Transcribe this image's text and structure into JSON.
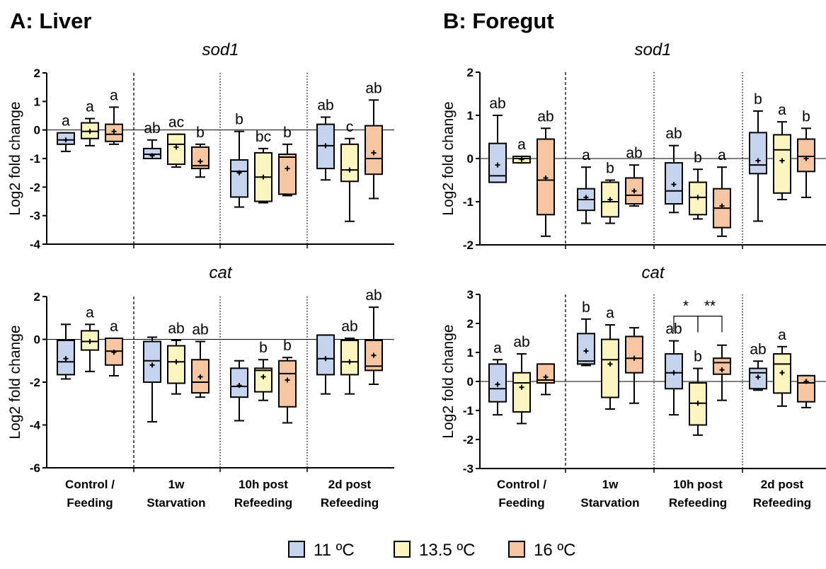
{
  "colors": {
    "11": "#c5d3ef",
    "13.5": "#fbf6c0",
    "16": "#f6c6a3"
  },
  "panels": [
    {
      "title": "A: Liver"
    },
    {
      "title": "B: Foregut"
    }
  ],
  "categories": [
    "Control / Feeding",
    "1w Starvation",
    "10h post Refeeding",
    "2d post Refeeding"
  ],
  "category_lines": [
    [
      "Control /",
      "Feeding"
    ],
    [
      "1w",
      "Starvation"
    ],
    [
      "10h post",
      "Refeeding"
    ],
    [
      "2d post",
      "Refeeding"
    ]
  ],
  "legend": [
    {
      "key": "11",
      "label": "11 ºC"
    },
    {
      "key": "13.5",
      "label": "13.5 ºC"
    },
    {
      "key": "16",
      "label": "16 ºC"
    }
  ],
  "chart_data": [
    {
      "type": "box",
      "panel": "A: Liver",
      "title": "sod1",
      "ylabel": "Log2 fold change",
      "ylim": [
        -4,
        2
      ],
      "yticks": [
        2,
        1,
        0,
        -1,
        -2,
        -3,
        -4
      ],
      "series": [
        "11 ºC",
        "13.5 ºC",
        "16 ºC"
      ],
      "boxes": [
        {
          "category": "Control / Feeding",
          "temp": "11",
          "min": -0.75,
          "q1": -0.5,
          "median": -0.35,
          "q3": -0.1,
          "max": -0.1,
          "mean": -0.35,
          "letter": "a"
        },
        {
          "category": "Control / Feeding",
          "temp": "13.5",
          "min": -0.55,
          "q1": -0.3,
          "median": -0.05,
          "q3": 0.25,
          "max": 0.4,
          "mean": -0.05,
          "letter": "a"
        },
        {
          "category": "Control / Feeding",
          "temp": "16",
          "min": -0.5,
          "q1": -0.4,
          "median": -0.15,
          "q3": 0.2,
          "max": 0.8,
          "mean": -0.05,
          "letter": "a"
        },
        {
          "category": "1w Starvation",
          "temp": "11",
          "min": -1.0,
          "q1": -1.0,
          "median": -0.85,
          "q3": -0.65,
          "max": -0.35,
          "mean": -0.9,
          "letter": "ab"
        },
        {
          "category": "1w Starvation",
          "temp": "13.5",
          "min": -1.3,
          "q1": -1.2,
          "median": -0.5,
          "q3": -0.15,
          "max": -0.15,
          "mean": -0.6,
          "letter": "ac"
        },
        {
          "category": "1w Starvation",
          "temp": "16",
          "min": -1.65,
          "q1": -1.35,
          "median": -1.25,
          "q3": -0.6,
          "max": -0.5,
          "mean": -1.1,
          "letter": "b"
        },
        {
          "category": "10h post Refeeding",
          "temp": "11",
          "min": -2.7,
          "q1": -2.35,
          "median": -1.45,
          "q3": -1.05,
          "max": -0.05,
          "mean": -1.5,
          "letter": "b"
        },
        {
          "category": "10h post Refeeding",
          "temp": "13.5",
          "min": -2.55,
          "q1": -2.5,
          "median": -1.65,
          "q3": -0.8,
          "max": -0.65,
          "mean": -1.65,
          "letter": "bc"
        },
        {
          "category": "10h post Refeeding",
          "temp": "16",
          "min": -2.3,
          "q1": -2.25,
          "median": -0.95,
          "q3": -0.85,
          "max": -0.5,
          "mean": -1.35,
          "letter": "b"
        },
        {
          "category": "2d post Refeeding",
          "temp": "11",
          "min": -1.75,
          "q1": -1.35,
          "median": -0.55,
          "q3": 0.2,
          "max": 0.45,
          "mean": -0.55,
          "letter": "ab"
        },
        {
          "category": "2d post Refeeding",
          "temp": "13.5",
          "min": -3.2,
          "q1": -1.8,
          "median": -1.4,
          "q3": -0.5,
          "max": -0.3,
          "mean": -1.4,
          "letter": "c"
        },
        {
          "category": "2d post Refeeding",
          "temp": "16",
          "min": -2.4,
          "q1": -1.55,
          "median": -1.0,
          "q3": 0.15,
          "max": 1.05,
          "mean": -0.8,
          "letter": "ab"
        }
      ]
    },
    {
      "type": "box",
      "panel": "A: Liver",
      "title": "cat",
      "ylabel": "Log2 fold change",
      "ylim": [
        -6,
        2
      ],
      "yticks": [
        2,
        0,
        -2,
        -4,
        -6
      ],
      "series": [
        "11 ºC",
        "13.5 ºC",
        "16 ºC"
      ],
      "boxes": [
        {
          "category": "Control / Feeding",
          "temp": "11",
          "min": -1.85,
          "q1": -1.65,
          "median": -1.05,
          "q3": -0.05,
          "max": 0.7,
          "mean": -0.9,
          "letter": ""
        },
        {
          "category": "Control / Feeding",
          "temp": "13.5",
          "min": -1.5,
          "q1": -0.5,
          "median": -0.1,
          "q3": 0.4,
          "max": 0.7,
          "mean": -0.1,
          "letter": "a"
        },
        {
          "category": "Control / Feeding",
          "temp": "16",
          "min": -1.7,
          "q1": -1.2,
          "median": -0.55,
          "q3": 0.05,
          "max": 0.05,
          "mean": -0.6,
          "letter": "a"
        },
        {
          "category": "1w Starvation",
          "temp": "11",
          "min": -3.85,
          "q1": -2.0,
          "median": -1.0,
          "q3": -0.1,
          "max": 0.1,
          "mean": -1.2,
          "letter": ""
        },
        {
          "category": "1w Starvation",
          "temp": "13.5",
          "min": -2.55,
          "q1": -2.05,
          "median": -1.05,
          "q3": -0.3,
          "max": -0.05,
          "mean": -1.05,
          "letter": "ab"
        },
        {
          "category": "1w Starvation",
          "temp": "16",
          "min": -2.7,
          "q1": -2.5,
          "median": -2.0,
          "q3": -0.95,
          "max": -0.1,
          "mean": -1.75,
          "letter": "ab"
        },
        {
          "category": "10h post Refeeding",
          "temp": "11",
          "min": -3.8,
          "q1": -2.7,
          "median": -2.2,
          "q3": -1.35,
          "max": -1.0,
          "mean": -2.15,
          "letter": ""
        },
        {
          "category": "10h post Refeeding",
          "temp": "13.5",
          "min": -2.85,
          "q1": -2.45,
          "median": -1.45,
          "q3": -1.35,
          "max": -0.95,
          "mean": -1.75,
          "letter": "b"
        },
        {
          "category": "10h post Refeeding",
          "temp": "16",
          "min": -3.9,
          "q1": -3.15,
          "median": -1.6,
          "q3": -1.0,
          "max": -0.85,
          "mean": -1.9,
          "letter": "b"
        },
        {
          "category": "2d post Refeeding",
          "temp": "11",
          "min": -2.55,
          "q1": -1.65,
          "median": -0.9,
          "q3": 0.2,
          "max": 0.2,
          "mean": -0.9,
          "letter": ""
        },
        {
          "category": "2d post Refeeding",
          "temp": "13.5",
          "min": -2.55,
          "q1": -1.65,
          "median": -1.05,
          "q3": -0.05,
          "max": 0.05,
          "mean": -1.05,
          "letter": "ab"
        },
        {
          "category": "2d post Refeeding",
          "temp": "16",
          "min": -2.1,
          "q1": -1.45,
          "median": -1.25,
          "q3": -0.05,
          "max": 1.5,
          "mean": -0.75,
          "letter": "ab"
        }
      ]
    },
    {
      "type": "box",
      "panel": "B: Foregut",
      "title": "sod1",
      "ylabel": "Log2 fold change",
      "ylim": [
        -2,
        2
      ],
      "yticks": [
        2,
        1,
        0,
        -1,
        -2
      ],
      "series": [
        "11 ºC",
        "13.5 ºC",
        "16 ºC"
      ],
      "boxes": [
        {
          "category": "Control / Feeding",
          "temp": "11",
          "min": -0.55,
          "q1": -0.55,
          "median": -0.4,
          "q3": 0.35,
          "max": 1.0,
          "mean": -0.15,
          "letter": "ab"
        },
        {
          "category": "Control / Feeding",
          "temp": "13.5",
          "min": -0.1,
          "q1": -0.1,
          "median": 0.0,
          "q3": 0.05,
          "max": 0.05,
          "mean": -0.02,
          "letter": "a"
        },
        {
          "category": "Control / Feeding",
          "temp": "16",
          "min": -1.8,
          "q1": -1.3,
          "median": -0.5,
          "q3": 0.45,
          "max": 0.7,
          "mean": -0.45,
          "letter": "ab"
        },
        {
          "category": "1w Starvation",
          "temp": "11",
          "min": -1.5,
          "q1": -1.2,
          "median": -0.95,
          "q3": -0.7,
          "max": -0.2,
          "mean": -0.9,
          "letter": "a"
        },
        {
          "category": "1w Starvation",
          "temp": "13.5",
          "min": -1.5,
          "q1": -1.35,
          "median": -1.0,
          "q3": -0.55,
          "max": -0.5,
          "mean": -0.95,
          "letter": "b"
        },
        {
          "category": "1w Starvation",
          "temp": "16",
          "min": -1.1,
          "q1": -1.05,
          "median": -0.85,
          "q3": -0.45,
          "max": -0.15,
          "mean": -0.75,
          "letter": "ab"
        },
        {
          "category": "10h post Refeeding",
          "temp": "11",
          "min": -1.25,
          "q1": -1.05,
          "median": -0.75,
          "q3": -0.1,
          "max": 0.3,
          "mean": -0.6,
          "letter": "ab"
        },
        {
          "category": "10h post Refeeding",
          "temp": "13.5",
          "min": -1.4,
          "q1": -1.3,
          "median": -0.9,
          "q3": -0.55,
          "max": -0.25,
          "mean": -0.9,
          "letter": "b"
        },
        {
          "category": "10h post Refeeding",
          "temp": "16",
          "min": -1.8,
          "q1": -1.6,
          "median": -1.15,
          "q3": -0.7,
          "max": -0.2,
          "mean": -1.1,
          "letter": "a"
        },
        {
          "category": "2d post Refeeding",
          "temp": "11",
          "min": -1.45,
          "q1": -0.35,
          "median": -0.15,
          "q3": 0.6,
          "max": 1.1,
          "mean": -0.05,
          "letter": "b"
        },
        {
          "category": "2d post Refeeding",
          "temp": "13.5",
          "min": -0.95,
          "q1": -0.8,
          "median": 0.2,
          "q3": 0.55,
          "max": 0.85,
          "mean": -0.05,
          "letter": "a"
        },
        {
          "category": "2d post Refeeding",
          "temp": "16",
          "min": -0.9,
          "q1": -0.3,
          "median": 0.05,
          "q3": 0.45,
          "max": 0.7,
          "mean": 0.0,
          "letter": "b"
        }
      ]
    },
    {
      "type": "box",
      "panel": "B: Foregut",
      "title": "cat",
      "ylabel": "Log2 fold change",
      "ylim": [
        -3,
        3
      ],
      "yticks": [
        3,
        2,
        1,
        0,
        -1,
        -2,
        -3
      ],
      "series": [
        "11 ºC",
        "13.5 ºC",
        "16 ºC"
      ],
      "boxes": [
        {
          "category": "Control / Feeding",
          "temp": "11",
          "min": -1.15,
          "q1": -0.7,
          "median": -0.25,
          "q3": 0.6,
          "max": 0.75,
          "mean": -0.1,
          "letter": "a"
        },
        {
          "category": "Control / Feeding",
          "temp": "13.5",
          "min": -1.45,
          "q1": -1.05,
          "median": -0.05,
          "q3": 0.3,
          "max": 0.95,
          "mean": -0.2,
          "letter": "ab"
        },
        {
          "category": "Control / Feeding",
          "temp": "16",
          "min": -0.45,
          "q1": -0.05,
          "median": 0.05,
          "q3": 0.6,
          "max": 0.6,
          "mean": 0.15,
          "letter": ""
        },
        {
          "category": "1w Starvation",
          "temp": "11",
          "min": 0.55,
          "q1": 0.6,
          "median": 0.7,
          "q3": 1.65,
          "max": 2.15,
          "mean": 1.05,
          "letter": "b"
        },
        {
          "category": "1w Starvation",
          "temp": "13.5",
          "min": -0.95,
          "q1": -0.55,
          "median": 0.75,
          "q3": 1.45,
          "max": 1.95,
          "mean": 0.6,
          "letter": "a"
        },
        {
          "category": "1w Starvation",
          "temp": "16",
          "min": -0.75,
          "q1": 0.3,
          "median": 0.8,
          "q3": 1.55,
          "max": 1.85,
          "mean": 0.8,
          "letter": ""
        },
        {
          "category": "10h post Refeeding",
          "temp": "11",
          "min": -1.15,
          "q1": -0.25,
          "median": 0.3,
          "q3": 0.95,
          "max": 1.4,
          "mean": 0.3,
          "letter": "ab"
        },
        {
          "category": "10h post Refeeding",
          "temp": "13.5",
          "min": -1.85,
          "q1": -1.5,
          "median": -0.75,
          "q3": -0.05,
          "max": 0.45,
          "mean": -0.75,
          "letter": "b"
        },
        {
          "category": "10h post Refeeding",
          "temp": "16",
          "min": -0.65,
          "q1": 0.25,
          "median": 0.65,
          "q3": 0.8,
          "max": 1.25,
          "mean": 0.4,
          "letter": ""
        },
        {
          "category": "2d post Refeeding",
          "temp": "11",
          "min": -0.3,
          "q1": -0.25,
          "median": 0.3,
          "q3": 0.45,
          "max": 0.7,
          "mean": 0.15,
          "letter": "ab"
        },
        {
          "category": "2d post Refeeding",
          "temp": "13.5",
          "min": -0.85,
          "q1": -0.4,
          "median": 0.6,
          "q3": 0.95,
          "max": 1.2,
          "mean": 0.3,
          "letter": "a"
        },
        {
          "category": "2d post Refeeding",
          "temp": "16",
          "min": -0.9,
          "q1": -0.7,
          "median": -0.05,
          "q3": 0.2,
          "max": 0.2,
          "mean": 0.0,
          "letter": ""
        }
      ],
      "significance": [
        {
          "from_temp": "11",
          "to_temp": "13.5",
          "category": "10h post Refeeding",
          "label": "*"
        },
        {
          "from_temp": "13.5",
          "to_temp": "16",
          "category": "10h post Refeeding",
          "label": "**"
        }
      ]
    }
  ]
}
